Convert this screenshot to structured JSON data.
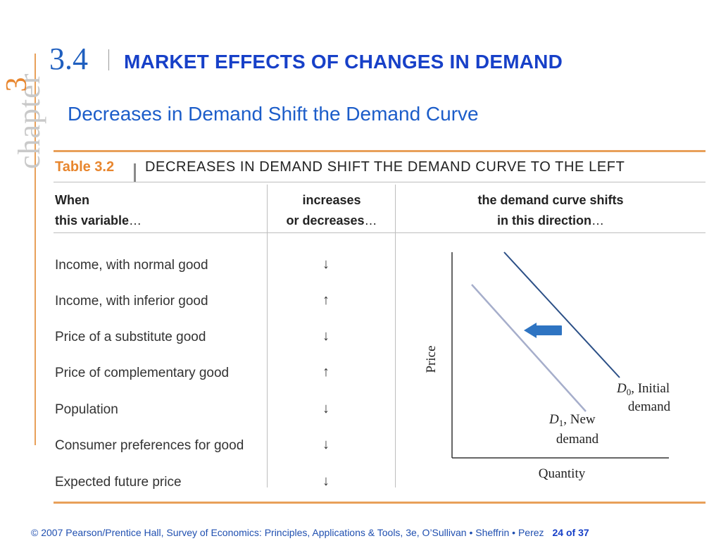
{
  "sidebar": {
    "word": "chapter",
    "number": "3"
  },
  "section": {
    "number": "3.4",
    "title": "MARKET EFFECTS OF CHANGES IN DEMAND"
  },
  "subtitle": "Decreases in Demand Shift the Demand Curve",
  "table": {
    "label": "Table 3.2",
    "title": "DECREASES IN DEMAND SHIFT THE DEMAND CURVE TO THE LEFT",
    "headers": {
      "col1": {
        "line1": "When",
        "line2": "this variable",
        "ellipsis": "…"
      },
      "col2": {
        "line1": "increases",
        "line2": "or decreases",
        "ellipsis": "…"
      },
      "col3": {
        "line1": "the demand curve shifts",
        "line2": "in this direction",
        "ellipsis": "…"
      }
    },
    "rows": [
      {
        "variable": "Income, with normal good",
        "change": "↓"
      },
      {
        "variable": "Income, with inferior good",
        "change": "↑"
      },
      {
        "variable": "Price of a substitute good",
        "change": "↓"
      },
      {
        "variable": "Price of complementary good",
        "change": "↑"
      },
      {
        "variable": "Population",
        "change": "↓"
      },
      {
        "variable": "Consumer preferences for good",
        "change": "↓"
      },
      {
        "variable": "Expected future price",
        "change": "↓"
      }
    ]
  },
  "graph": {
    "y_label": "Price",
    "x_label": "Quantity",
    "d0_sub": "0",
    "d0_rest": ", Initial",
    "d0_line2": "demand",
    "d1_sub": "1",
    "d1_rest": ", New",
    "d1_line2": "demand",
    "d_letter": "D",
    "colors": {
      "initial": "#2b4f86",
      "new": "#a6aecb",
      "arrow": "#2e74c2"
    },
    "shift_direction": "left"
  },
  "footer": {
    "credit": "© 2007 Pearson/Prentice Hall, Survey of Economics: Principles, Applications & Tools, 3e, O’Sullivan • Sheffrin • Perez",
    "page": "24 of 37"
  }
}
